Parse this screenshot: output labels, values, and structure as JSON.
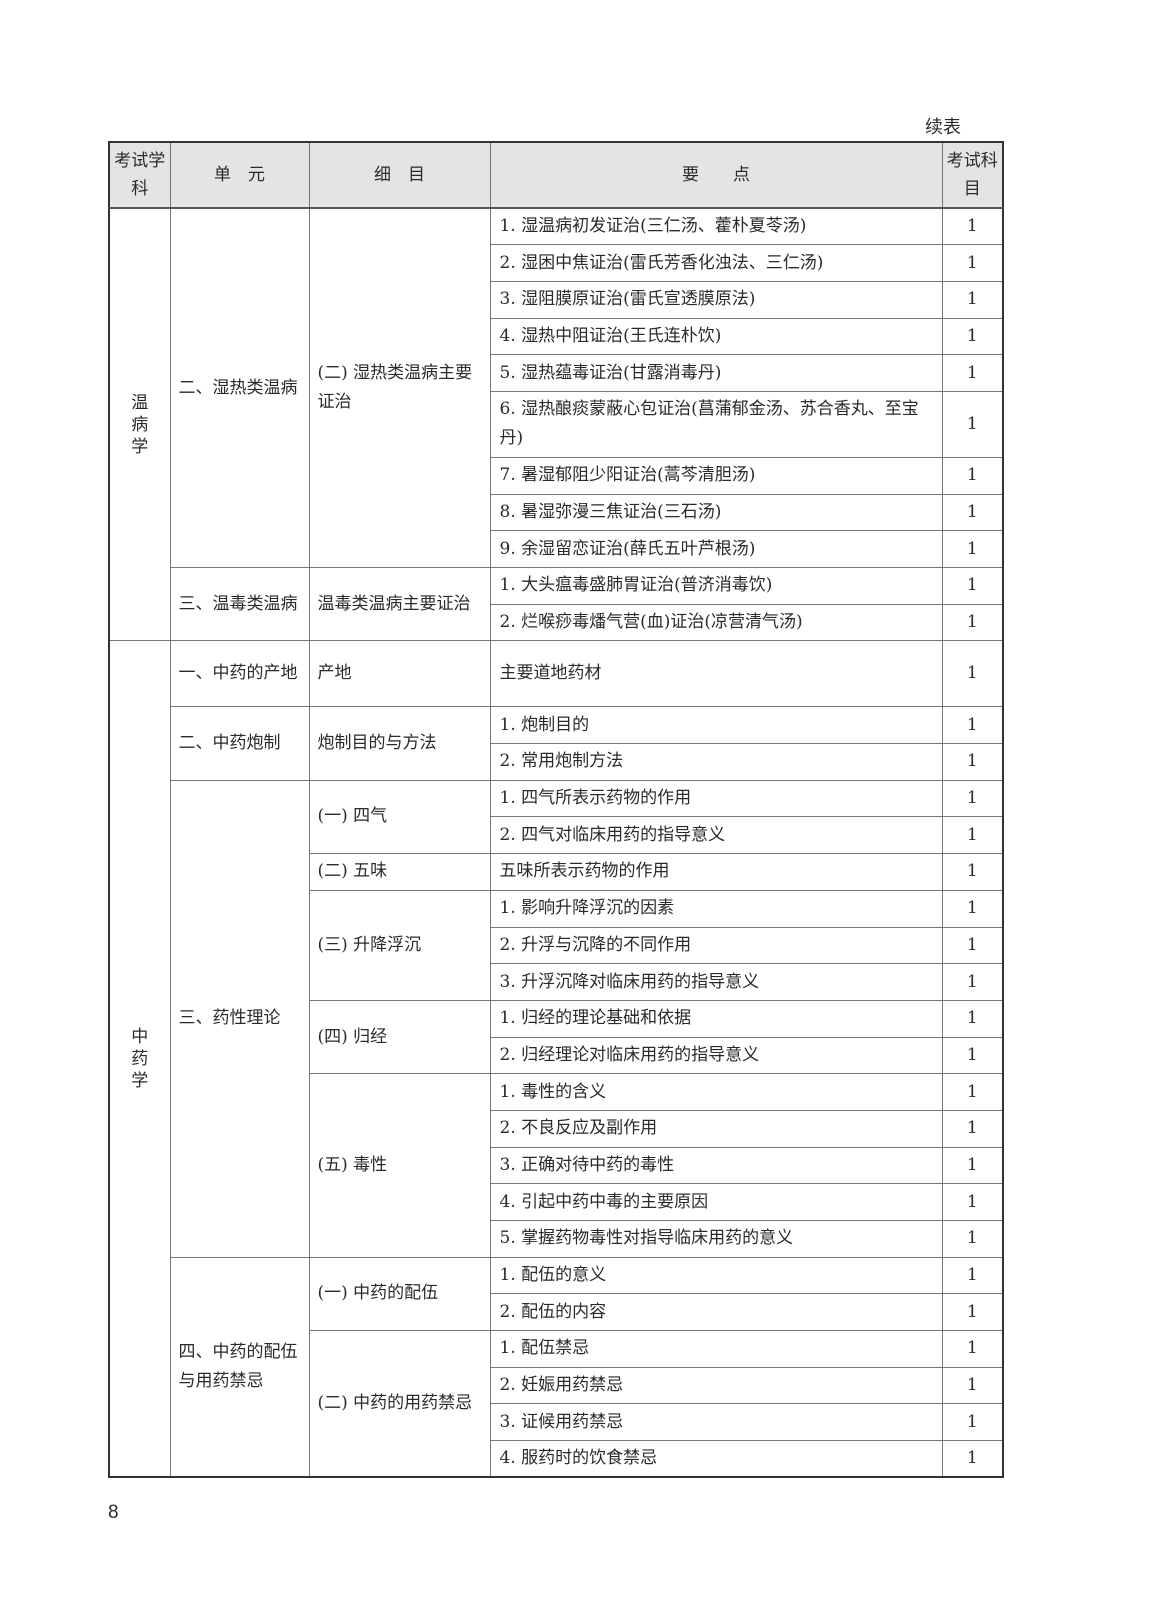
{
  "continued_label": "续表",
  "page_number": "8",
  "header": {
    "subject": "考试学科",
    "unit": "单　元",
    "detail": "细　目",
    "points": "要　　点",
    "exam": "考试科目"
  },
  "subjects": [
    {
      "name": "温病学",
      "units": [
        {
          "name": "二、湿热类温病",
          "details": [
            {
              "name": "(二) 湿热类温病主要证治",
              "points": [
                {
                  "text": "1. 湿温病初发证治(三仁汤、藿朴夏苓汤)",
                  "score": "1"
                },
                {
                  "text": "2. 湿困中焦证治(雷氏芳香化浊法、三仁汤)",
                  "score": "1"
                },
                {
                  "text": "3. 湿阻膜原证治(雷氏宣透膜原法)",
                  "score": "1"
                },
                {
                  "text": "4. 湿热中阻证治(王氏连朴饮)",
                  "score": "1"
                },
                {
                  "text": "5. 湿热蕴毒证治(甘露消毒丹)",
                  "score": "1"
                },
                {
                  "text": "6. 湿热酿痰蒙蔽心包证治(菖蒲郁金汤、苏合香丸、至宝丹)",
                  "score": "1"
                },
                {
                  "text": "7. 暑湿郁阻少阳证治(蒿芩清胆汤)",
                  "score": "1"
                },
                {
                  "text": "8. 暑湿弥漫三焦证治(三石汤)",
                  "score": "1"
                },
                {
                  "text": "9. 余湿留恋证治(薛氏五叶芦根汤)",
                  "score": "1"
                }
              ]
            }
          ]
        },
        {
          "name": "三、温毒类温病",
          "details": [
            {
              "name": "温毒类温病主要证治",
              "points": [
                {
                  "text": "1. 大头瘟毒盛肺胃证治(普济消毒饮)",
                  "score": "1"
                },
                {
                  "text": "2. 烂喉痧毒燔气营(血)证治(凉营清气汤)",
                  "score": "1"
                }
              ]
            }
          ]
        }
      ]
    },
    {
      "name": "中药学",
      "units": [
        {
          "name": "一、中药的产地",
          "details": [
            {
              "name": "产地",
              "points": [
                {
                  "text": "主要道地药材",
                  "score": "1"
                }
              ]
            }
          ]
        },
        {
          "name": "二、中药炮制",
          "details": [
            {
              "name": "炮制目的与方法",
              "points": [
                {
                  "text": "1. 炮制目的",
                  "score": "1"
                },
                {
                  "text": "2. 常用炮制方法",
                  "score": "1"
                }
              ]
            }
          ]
        },
        {
          "name": "三、药性理论",
          "details": [
            {
              "name": "(一) 四气",
              "points": [
                {
                  "text": "1. 四气所表示药物的作用",
                  "score": "1"
                },
                {
                  "text": "2. 四气对临床用药的指导意义",
                  "score": "1"
                }
              ]
            },
            {
              "name": "(二) 五味",
              "points": [
                {
                  "text": "五味所表示药物的作用",
                  "score": "1"
                }
              ]
            },
            {
              "name": "(三) 升降浮沉",
              "points": [
                {
                  "text": "1. 影响升降浮沉的因素",
                  "score": "1"
                },
                {
                  "text": "2. 升浮与沉降的不同作用",
                  "score": "1"
                },
                {
                  "text": "3. 升浮沉降对临床用药的指导意义",
                  "score": "1"
                }
              ]
            },
            {
              "name": "(四) 归经",
              "points": [
                {
                  "text": "1. 归经的理论基础和依据",
                  "score": "1"
                },
                {
                  "text": "2. 归经理论对临床用药的指导意义",
                  "score": "1"
                }
              ]
            },
            {
              "name": "(五) 毒性",
              "points": [
                {
                  "text": "1. 毒性的含义",
                  "score": "1"
                },
                {
                  "text": "2. 不良反应及副作用",
                  "score": "1"
                },
                {
                  "text": "3. 正确对待中药的毒性",
                  "score": "1"
                },
                {
                  "text": "4. 引起中药中毒的主要原因",
                  "score": "1"
                },
                {
                  "text": "5. 掌握药物毒性对指导临床用药的意义",
                  "score": "1"
                }
              ]
            }
          ]
        },
        {
          "name": "四、中药的配伍与用药禁忌",
          "details": [
            {
              "name": "(一) 中药的配伍",
              "points": [
                {
                  "text": "1. 配伍的意义",
                  "score": "1"
                },
                {
                  "text": "2. 配伍的内容",
                  "score": "1"
                }
              ]
            },
            {
              "name": "(二) 中药的用药禁忌",
              "points": [
                {
                  "text": "1. 配伍禁忌",
                  "score": "1"
                },
                {
                  "text": "2. 妊娠用药禁忌",
                  "score": "1"
                },
                {
                  "text": "3. 证候用药禁忌",
                  "score": "1"
                },
                {
                  "text": "4. 服药时的饮食禁忌",
                  "score": "1"
                }
              ]
            }
          ]
        }
      ]
    }
  ]
}
